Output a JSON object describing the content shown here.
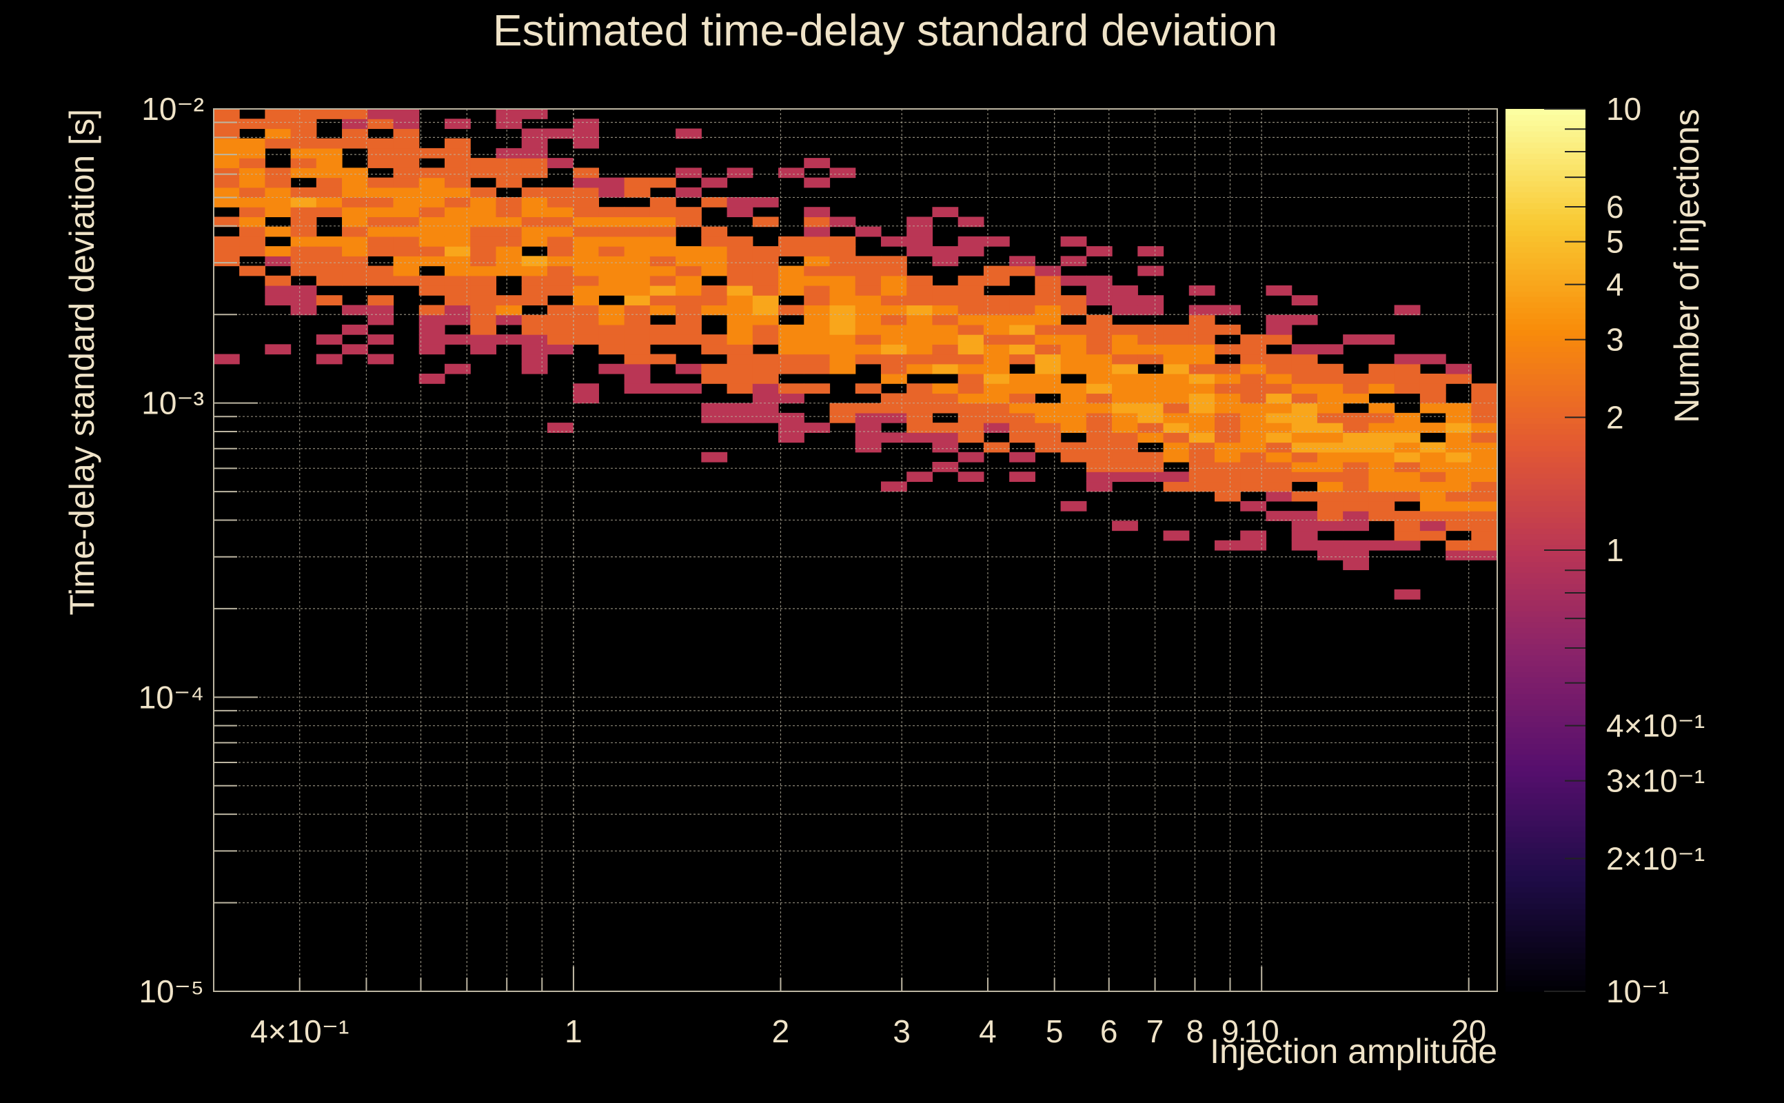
{
  "chart_data": {
    "type": "heatmap",
    "title": "Estimated time-delay standard deviation",
    "xlabel": "Injection amplitude",
    "ylabel": "Time-delay standard deviation [s]",
    "zlabel": "Number of injections",
    "x_scale": "log",
    "y_scale": "log",
    "z_scale": "log",
    "xlim": [
      0.3,
      22
    ],
    "ylim": [
      1e-05,
      0.01
    ],
    "zlim": [
      0.1,
      10
    ],
    "x_ticks": [
      {
        "v": 0.4,
        "label": "4×10⁻¹"
      },
      {
        "v": 1,
        "label": "1"
      },
      {
        "v": 2,
        "label": "2"
      },
      {
        "v": 3,
        "label": "3"
      },
      {
        "v": 4,
        "label": "4"
      },
      {
        "v": 5,
        "label": "5"
      },
      {
        "v": 6,
        "label": "6"
      },
      {
        "v": 7,
        "label": "7"
      },
      {
        "v": 8,
        "label": "8"
      },
      {
        "v": 9,
        "label": "9"
      },
      {
        "v": 10,
        "label": "10"
      },
      {
        "v": 20,
        "label": "20"
      }
    ],
    "y_ticks": [
      {
        "v": 1e-05,
        "label": "10⁻⁵"
      },
      {
        "v": 0.0001,
        "label": "10⁻⁴"
      },
      {
        "v": 0.001,
        "label": "10⁻³"
      },
      {
        "v": 0.01,
        "label": "10⁻²"
      }
    ],
    "z_ticks": [
      {
        "v": 10,
        "label": "10"
      },
      {
        "v": 6,
        "label": "6"
      },
      {
        "v": 5,
        "label": "5"
      },
      {
        "v": 4,
        "label": "4"
      },
      {
        "v": 3,
        "label": "3"
      },
      {
        "v": 2,
        "label": "2"
      },
      {
        "v": 1,
        "label": "1"
      },
      {
        "v": 0.4,
        "label": "4×10⁻¹"
      },
      {
        "v": 0.3,
        "label": "3×10⁻¹"
      },
      {
        "v": 0.2,
        "label": "2×10⁻¹"
      },
      {
        "v": 0.1,
        "label": "10⁻¹"
      }
    ],
    "grid": true,
    "colormap": "inferno",
    "bins": {
      "x_edges_log10": [
        -0.523,
        1.342,
        50
      ],
      "y_edges_log10": [
        -4.0,
        -2.0,
        60
      ]
    },
    "note": "counts per bin estimated from the image; band trends from ~6e-3 s at amplitude 0.3 down to ~5e-4 s at amplitude 20"
  }
}
